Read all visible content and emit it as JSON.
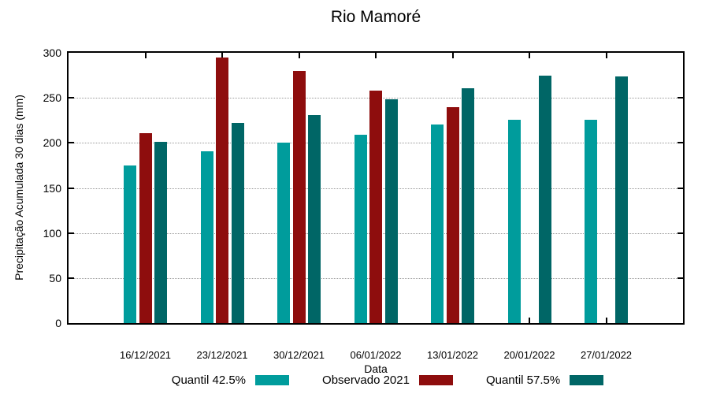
{
  "page": {
    "background": "#FFFFFF"
  },
  "chart_data": {
    "type": "bar",
    "title": "Rio Mamoré",
    "xlabel": "Data",
    "ylabel": "Precipitação Acumulada 30 dias (mm)",
    "ylim": [
      0,
      300
    ],
    "yticks": [
      0,
      50,
      100,
      150,
      200,
      250,
      300
    ],
    "grid": "horizontal-dotted",
    "grid_color": "#9A9A9A",
    "axis_color": "#000000",
    "legend_position": "bottom",
    "categories": [
      "16/12/2021",
      "23/12/2021",
      "30/12/2021",
      "06/01/2022",
      "13/01/2022",
      "20/01/2022",
      "27/01/2022"
    ],
    "series": [
      {
        "name": "Quantil 42.5%",
        "color": "#009C9C",
        "values": [
          175,
          191,
          200,
          209,
          220,
          226,
          226
        ]
      },
      {
        "name": "Observado 2021",
        "color": "#8E0D0D",
        "values": [
          211,
          295,
          280,
          258,
          240,
          null,
          null
        ]
      },
      {
        "name": "Quantil 57.5%",
        "color": "#006666",
        "values": [
          201,
          222,
          231,
          248,
          261,
          275,
          274
        ]
      }
    ]
  }
}
